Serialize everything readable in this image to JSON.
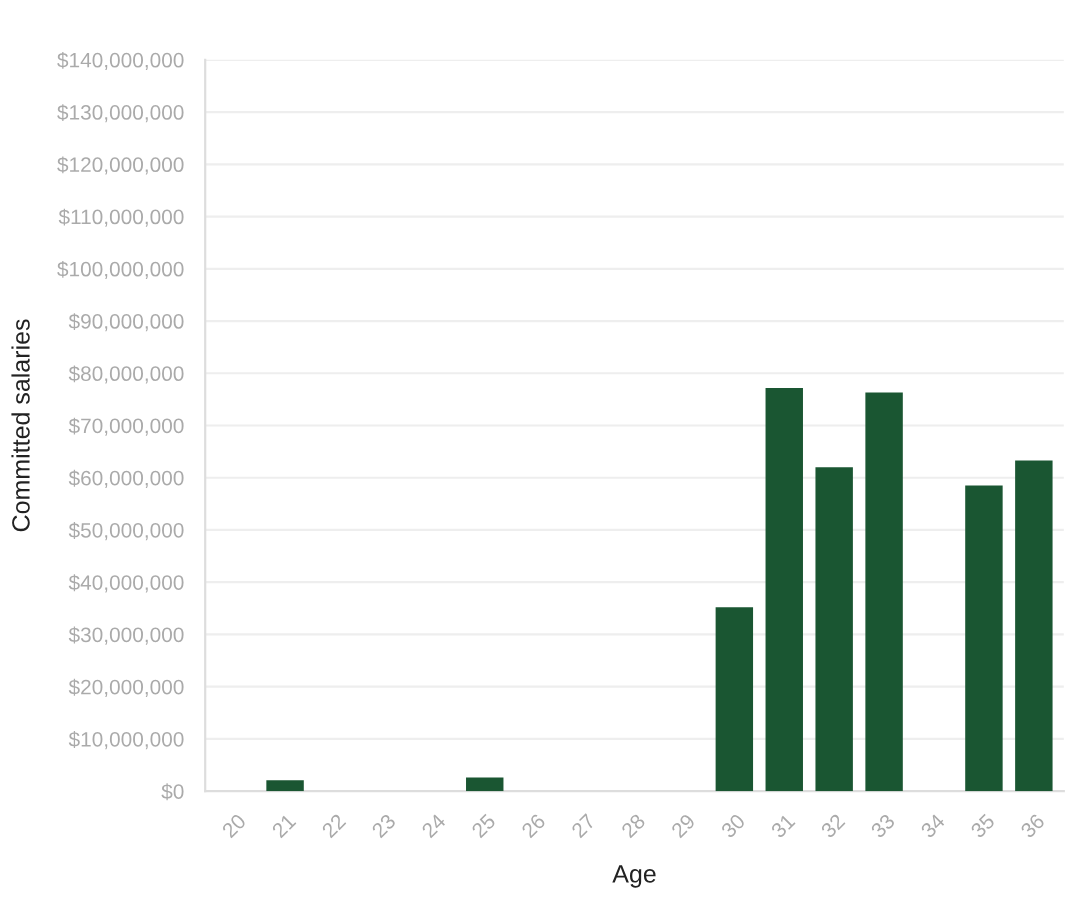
{
  "chart_data": {
    "type": "bar",
    "xlabel": "Age",
    "ylabel": "Committed salaries",
    "categories": [
      "20",
      "21",
      "22",
      "23",
      "24",
      "25",
      "26",
      "27",
      "28",
      "29",
      "30",
      "31",
      "32",
      "33",
      "34",
      "35",
      "36"
    ],
    "values": [
      0,
      2100000,
      0,
      0,
      0,
      2600000,
      0,
      0,
      0,
      0,
      35200000,
      77200000,
      62000000,
      76300000,
      0,
      58500000,
      63300000
    ],
    "color": "#1a5632",
    "ylim": [
      0,
      140000000
    ],
    "yticks": [
      {
        "value": 0,
        "label": "$0"
      },
      {
        "value": 10000000,
        "label": "$10,000,000"
      },
      {
        "value": 20000000,
        "label": "$20,000,000"
      },
      {
        "value": 30000000,
        "label": "$30,000,000"
      },
      {
        "value": 40000000,
        "label": "$40,000,000"
      },
      {
        "value": 50000000,
        "label": "$50,000,000"
      },
      {
        "value": 60000000,
        "label": "$60,000,000"
      },
      {
        "value": 70000000,
        "label": "$70,000,000"
      },
      {
        "value": 80000000,
        "label": "$80,000,000"
      },
      {
        "value": 90000000,
        "label": "$90,000,000"
      },
      {
        "value": 100000000,
        "label": "$100,000,000"
      },
      {
        "value": 110000000,
        "label": "$110,000,000"
      },
      {
        "value": 120000000,
        "label": "$120,000,000"
      },
      {
        "value": 130000000,
        "label": "$130,000,000"
      },
      {
        "value": 140000000,
        "label": "$140,000,000"
      }
    ],
    "grid": "y"
  }
}
